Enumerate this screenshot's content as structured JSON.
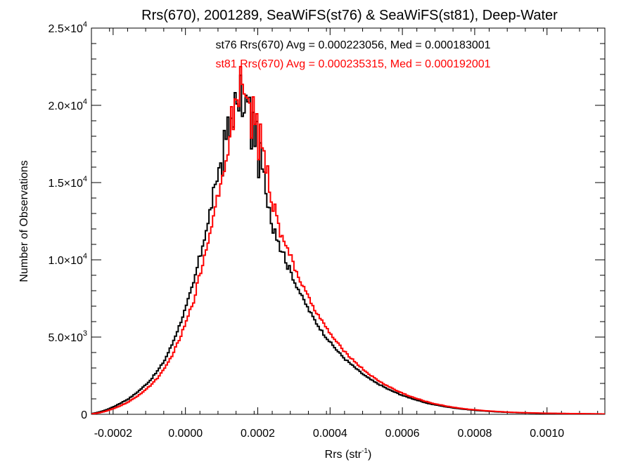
{
  "chart_data": {
    "type": "histogram-step",
    "title": "Rrs(670), 2001289, SeaWiFS(st76) & SeaWiFS(st81), Deep-Water",
    "xlabel": "Rrs (str",
    "xlabel_sup": "-1",
    "xlabel_end": ")",
    "ylabel": "Number of Observations",
    "xlim": [
      -0.00026,
      0.00116
    ],
    "ylim": [
      0,
      25000
    ],
    "grid": false,
    "x_ticks": [
      {
        "value": -0.0002,
        "label": "-0.0002"
      },
      {
        "value": 0.0,
        "label": "0.0000"
      },
      {
        "value": 0.0002,
        "label": "0.0002"
      },
      {
        "value": 0.0004,
        "label": "0.0004"
      },
      {
        "value": 0.0006,
        "label": "0.0006"
      },
      {
        "value": 0.0008,
        "label": "0.0008"
      },
      {
        "value": 0.001,
        "label": "0.0010"
      }
    ],
    "y_ticks": [
      {
        "value": 0,
        "mant": "0",
        "exp": ""
      },
      {
        "value": 5000,
        "mant": "5.0×10",
        "exp": "3"
      },
      {
        "value": 10000,
        "mant": "1.0×10",
        "exp": "4"
      },
      {
        "value": 15000,
        "mant": "1.5×10",
        "exp": "4"
      },
      {
        "value": 20000,
        "mant": "2.0×10",
        "exp": "4"
      },
      {
        "value": 25000,
        "mant": "2.5×10",
        "exp": "4"
      }
    ],
    "bin_width": 5e-06,
    "series": [
      {
        "name": "st76",
        "color": "#000000",
        "stats_label": "st76 Rrs(670) Avg = 0.000223056, Med = 0.000183001",
        "points": [
          [
            -0.00026,
            50
          ],
          [
            -0.00024,
            150
          ],
          [
            -0.00022,
            300
          ],
          [
            -0.0002,
            500
          ],
          [
            -0.00018,
            750
          ],
          [
            -0.00016,
            1000
          ],
          [
            -0.00014,
            1350
          ],
          [
            -0.00012,
            1750
          ],
          [
            -0.0001,
            2200
          ],
          [
            -8e-05,
            2800
          ],
          [
            -6e-05,
            3500
          ],
          [
            -4e-05,
            4500
          ],
          [
            -2e-05,
            5700
          ],
          [
            0.0,
            7000
          ],
          [
            2e-05,
            8500
          ],
          [
            4e-05,
            10500
          ],
          [
            6e-05,
            12500
          ],
          [
            8e-05,
            14800
          ],
          [
            0.0001,
            17000
          ],
          [
            0.00012,
            19000
          ],
          [
            0.00014,
            20500
          ],
          [
            0.00016,
            20500
          ],
          [
            0.00018,
            19300
          ],
          [
            0.0002,
            17300
          ],
          [
            0.00022,
            14500
          ],
          [
            0.00024,
            12400
          ],
          [
            0.00026,
            11000
          ],
          [
            0.00028,
            9700
          ],
          [
            0.0003,
            8600
          ],
          [
            0.00032,
            7600
          ],
          [
            0.00034,
            6700
          ],
          [
            0.00036,
            5900
          ],
          [
            0.00038,
            5200
          ],
          [
            0.0004,
            4600
          ],
          [
            0.00042,
            4050
          ],
          [
            0.00044,
            3550
          ],
          [
            0.00046,
            3150
          ],
          [
            0.00048,
            2750
          ],
          [
            0.0005,
            2400
          ],
          [
            0.00052,
            2100
          ],
          [
            0.00054,
            1850
          ],
          [
            0.00056,
            1600
          ],
          [
            0.00058,
            1400
          ],
          [
            0.0006,
            1200
          ],
          [
            0.00062,
            1050
          ],
          [
            0.00064,
            900
          ],
          [
            0.00066,
            750
          ],
          [
            0.00068,
            650
          ],
          [
            0.0007,
            560
          ],
          [
            0.00072,
            480
          ],
          [
            0.00074,
            410
          ],
          [
            0.00076,
            350
          ],
          [
            0.00078,
            300
          ],
          [
            0.0008,
            260
          ],
          [
            0.00082,
            220
          ],
          [
            0.00084,
            190
          ],
          [
            0.00086,
            160
          ],
          [
            0.00088,
            140
          ],
          [
            0.0009,
            120
          ],
          [
            0.00092,
            100
          ],
          [
            0.00094,
            90
          ],
          [
            0.00096,
            80
          ],
          [
            0.00098,
            70
          ],
          [
            0.001,
            60
          ],
          [
            0.00102,
            55
          ],
          [
            0.00104,
            50
          ],
          [
            0.00106,
            45
          ],
          [
            0.00108,
            40
          ],
          [
            0.0011,
            35
          ],
          [
            0.00112,
            30
          ],
          [
            0.00114,
            25
          ],
          [
            0.00116,
            20
          ]
        ]
      },
      {
        "name": "st81",
        "color": "#ff0000",
        "stats_label": "st81 Rrs(670) Avg = 0.000235315, Med = 0.000192001",
        "points": [
          [
            -0.00026,
            30
          ],
          [
            -0.00024,
            100
          ],
          [
            -0.00022,
            220
          ],
          [
            -0.0002,
            380
          ],
          [
            -0.00018,
            580
          ],
          [
            -0.00016,
            800
          ],
          [
            -0.00014,
            1100
          ],
          [
            -0.00012,
            1450
          ],
          [
            -0.0001,
            1850
          ],
          [
            -8e-05,
            2350
          ],
          [
            -6e-05,
            2950
          ],
          [
            -4e-05,
            3800
          ],
          [
            -2e-05,
            4800
          ],
          [
            0.0,
            6000
          ],
          [
            2e-05,
            7400
          ],
          [
            4e-05,
            9300
          ],
          [
            6e-05,
            11300
          ],
          [
            8e-05,
            13600
          ],
          [
            0.0001,
            16000
          ],
          [
            0.00012,
            18500
          ],
          [
            0.00014,
            20700
          ],
          [
            0.00016,
            21200
          ],
          [
            0.00018,
            20200
          ],
          [
            0.0002,
            18500
          ],
          [
            0.00022,
            16000
          ],
          [
            0.00024,
            13700
          ],
          [
            0.00026,
            12100
          ],
          [
            0.00028,
            10700
          ],
          [
            0.0003,
            9500
          ],
          [
            0.00032,
            8400
          ],
          [
            0.00034,
            7450
          ],
          [
            0.00036,
            6600
          ],
          [
            0.00038,
            5850
          ],
          [
            0.0004,
            5150
          ],
          [
            0.00042,
            4550
          ],
          [
            0.00044,
            4000
          ],
          [
            0.00046,
            3550
          ],
          [
            0.00048,
            3100
          ],
          [
            0.0005,
            2700
          ],
          [
            0.00052,
            2350
          ],
          [
            0.00054,
            2050
          ],
          [
            0.00056,
            1800
          ],
          [
            0.00058,
            1550
          ],
          [
            0.0006,
            1350
          ],
          [
            0.00062,
            1150
          ],
          [
            0.00064,
            1000
          ],
          [
            0.00066,
            850
          ],
          [
            0.00068,
            720
          ],
          [
            0.0007,
            620
          ],
          [
            0.00072,
            530
          ],
          [
            0.00074,
            450
          ],
          [
            0.00076,
            385
          ],
          [
            0.00078,
            330
          ],
          [
            0.0008,
            285
          ],
          [
            0.00082,
            245
          ],
          [
            0.00084,
            210
          ],
          [
            0.00086,
            180
          ],
          [
            0.00088,
            155
          ],
          [
            0.0009,
            130
          ],
          [
            0.00092,
            115
          ],
          [
            0.00094,
            100
          ],
          [
            0.00096,
            88
          ],
          [
            0.00098,
            78
          ],
          [
            0.001,
            68
          ],
          [
            0.00102,
            60
          ],
          [
            0.00104,
            54
          ],
          [
            0.00106,
            48
          ],
          [
            0.00108,
            43
          ],
          [
            0.0011,
            38
          ],
          [
            0.00112,
            33
          ],
          [
            0.00114,
            28
          ],
          [
            0.00116,
            22
          ]
        ]
      }
    ]
  }
}
